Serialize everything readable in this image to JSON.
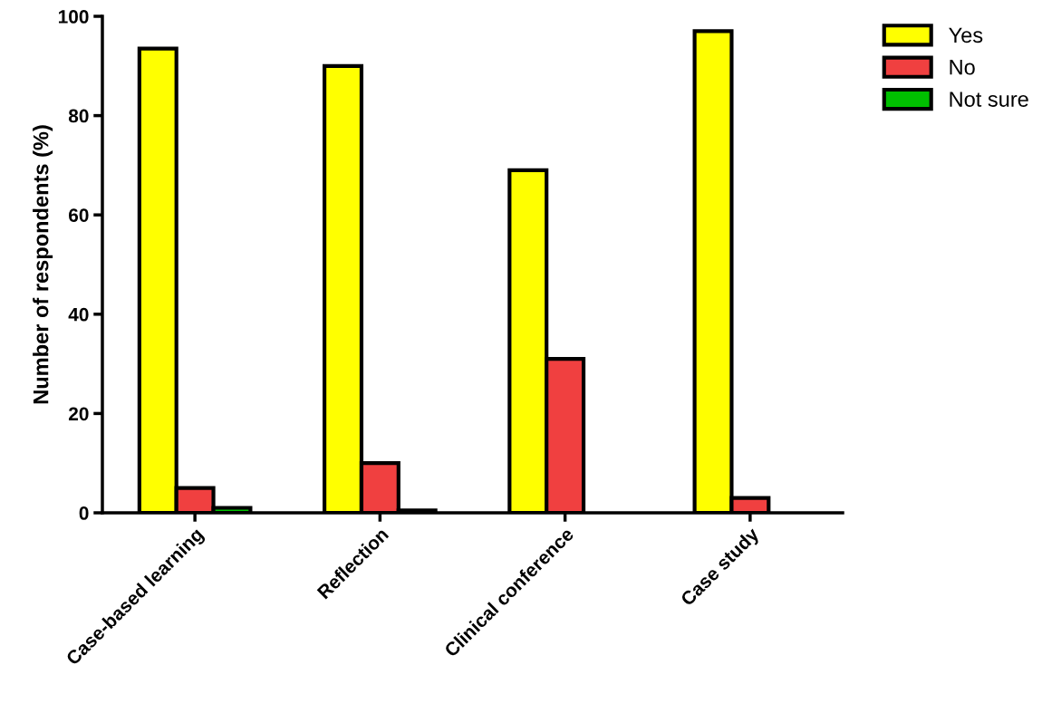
{
  "chart_data": {
    "type": "bar",
    "ylabel": "Number of respondents (%)",
    "categories": [
      "Case-based learning",
      "Reflection",
      "Clinical conference",
      "Case study"
    ],
    "series": [
      {
        "name": "Yes",
        "color": "#ffff00",
        "values": [
          93.5,
          90,
          69,
          97
        ]
      },
      {
        "name": "No",
        "color": "#f04040",
        "values": [
          5,
          10,
          31,
          3
        ]
      },
      {
        "name": "Not sure",
        "color": "#00c000",
        "values": [
          1,
          0.5,
          null,
          null
        ]
      }
    ],
    "ylim": [
      0,
      100
    ],
    "yticks": [
      0,
      20,
      40,
      60,
      80,
      100
    ],
    "grid": false,
    "legend": "top right"
  }
}
